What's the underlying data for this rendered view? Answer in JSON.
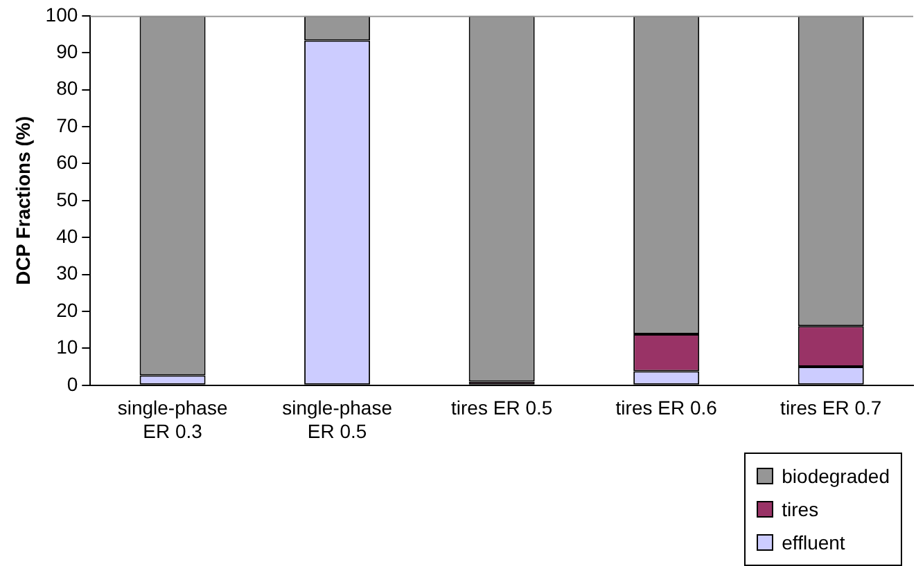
{
  "chart_data": {
    "type": "bar",
    "stacked": true,
    "ylabel": "DCP Fractions (%)",
    "categories": [
      "single-phase ER 0.3",
      "single-phase ER 0.5",
      "tires ER 0.5",
      "tires ER 0.6",
      "tires ER 0.7"
    ],
    "series": [
      {
        "name": "effluent",
        "color": "#ccccff",
        "values": [
          2.7,
          93.3,
          0,
          3.8,
          5.0
        ]
      },
      {
        "name": "tires",
        "color": "#993366",
        "values": [
          0,
          0,
          1.0,
          10.0,
          11.0
        ]
      },
      {
        "name": "biodegraded",
        "color": "#969696",
        "values": [
          97.3,
          6.7,
          99.0,
          86.2,
          84.0
        ]
      }
    ],
    "ylim": [
      0,
      100
    ],
    "yticks": [
      0,
      10,
      20,
      30,
      40,
      50,
      60,
      70,
      80,
      90,
      100
    ],
    "grid": false,
    "legend": "bottom right"
  }
}
